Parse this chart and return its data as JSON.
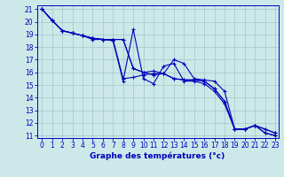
{
  "xlabel": "Graphe des températures (°c)",
  "background_color": "#cce8e8",
  "grid_color": "#aacccc",
  "line_color": "#0000bb",
  "xlim_min": -0.5,
  "xlim_max": 23.3,
  "ylim_min": 10.8,
  "ylim_max": 21.3,
  "xticks": [
    0,
    1,
    2,
    3,
    4,
    5,
    6,
    7,
    8,
    9,
    10,
    11,
    12,
    13,
    14,
    15,
    16,
    17,
    18,
    19,
    20,
    21,
    22,
    23
  ],
  "yticks": [
    11,
    12,
    13,
    14,
    15,
    16,
    17,
    18,
    19,
    20,
    21
  ],
  "series": [
    [
      21.0,
      20.1,
      19.3,
      19.1,
      18.9,
      18.6,
      18.6,
      18.5,
      15.3,
      19.4,
      15.5,
      15.1,
      16.5,
      16.7,
      15.3,
      15.3,
      15.1,
      14.5,
      13.5,
      11.5,
      11.5,
      11.8,
      11.2,
      11.0
    ],
    [
      21.0,
      20.1,
      19.3,
      19.1,
      18.9,
      18.7,
      18.6,
      18.6,
      18.6,
      16.3,
      16.0,
      15.8,
      15.9,
      15.5,
      15.4,
      15.4,
      15.3,
      14.7,
      13.7,
      11.5,
      11.5,
      11.8,
      11.2,
      11.0
    ],
    [
      21.0,
      20.1,
      19.3,
      19.1,
      18.9,
      18.7,
      18.6,
      18.6,
      18.6,
      16.3,
      16.0,
      16.1,
      15.9,
      15.5,
      15.4,
      15.4,
      15.3,
      14.7,
      13.7,
      11.5,
      11.5,
      11.8,
      11.5,
      11.2
    ],
    [
      21.0,
      20.1,
      19.3,
      19.1,
      18.9,
      18.7,
      18.6,
      18.6,
      15.5,
      15.6,
      15.8,
      15.9,
      15.9,
      17.0,
      16.7,
      15.5,
      15.4,
      15.3,
      14.5,
      11.5,
      11.5,
      11.8,
      11.5,
      11.2
    ]
  ],
  "tick_fontsize": 5.5,
  "xlabel_fontsize": 6.5
}
